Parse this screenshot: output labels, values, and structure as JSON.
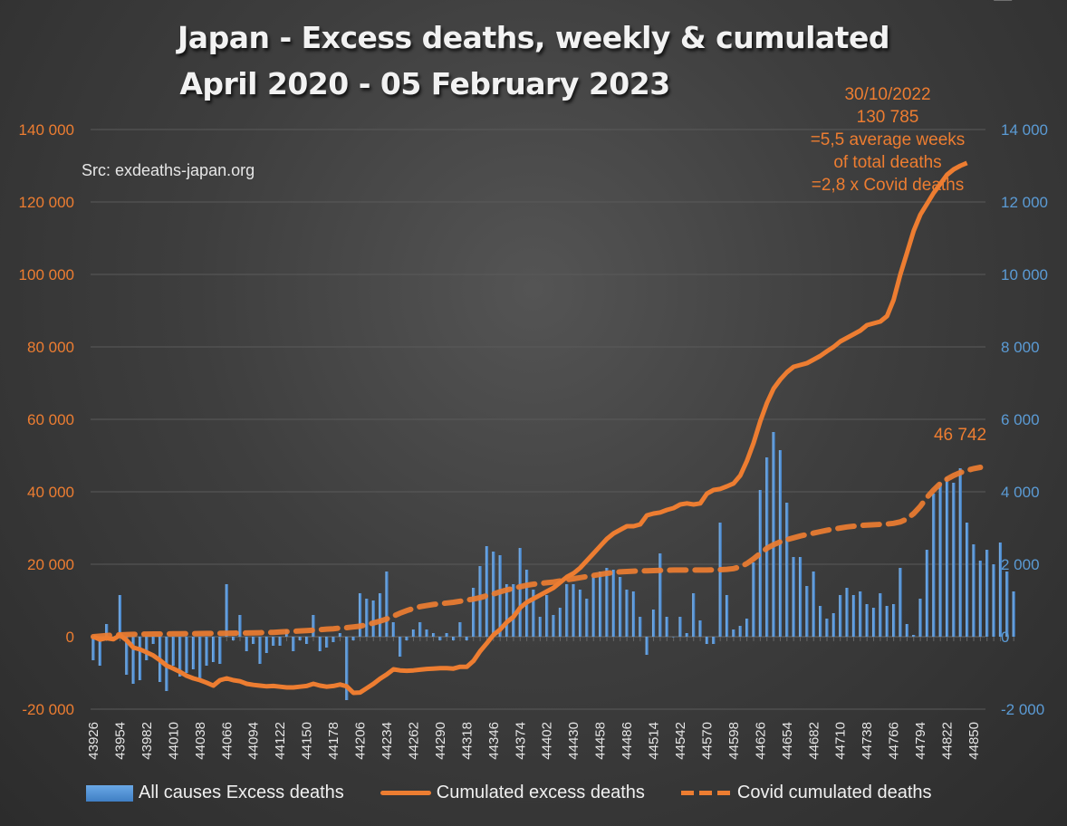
{
  "chart_data": {
    "type": "bar+line",
    "title": "Japan - Excess deaths, weekly & cumulated",
    "subtitle": "April 2020 - 05 February 2023",
    "source": "Src: exdeaths-japan.org",
    "left_axis": {
      "ylim": [
        -20000,
        140000
      ],
      "ticks": [
        "-20 000",
        "0",
        "20 000",
        "40 000",
        "60 000",
        "80 000",
        "100 000",
        "120 000",
        "140 000"
      ],
      "tick_values": [
        -20000,
        0,
        20000,
        40000,
        60000,
        80000,
        100000,
        120000,
        140000
      ],
      "color": "#ed7d31"
    },
    "right_axis": {
      "ylim": [
        -2000,
        14000
      ],
      "ticks": [
        "-2 000",
        "0",
        "2 000",
        "4 000",
        "6 000",
        "8 000",
        "10 000",
        "12 000",
        "14 000"
      ],
      "tick_values": [
        -2000,
        0,
        2000,
        4000,
        6000,
        8000,
        10000,
        12000,
        14000
      ],
      "color": "#5b9bd5"
    },
    "x_start": 43926,
    "x_step": 7,
    "x_tick_labels": [
      "43926",
      "43954",
      "43982",
      "44010",
      "44038",
      "44066",
      "44094",
      "44122",
      "44150",
      "44178",
      "44206",
      "44234",
      "44262",
      "44290",
      "44318",
      "44346",
      "44374",
      "44402",
      "44430",
      "44458",
      "44486",
      "44514",
      "44542",
      "44570",
      "44598",
      "44626",
      "44654",
      "44682",
      "44710",
      "44738",
      "44766",
      "44794",
      "44822",
      "44850"
    ],
    "grid": true,
    "legend_position": "bottom",
    "series": [
      {
        "name": "All causes Excess deaths",
        "type": "bar",
        "axis": "right",
        "color": "#5b9bd5",
        "values": [
          -650,
          -800,
          350,
          -100,
          1150,
          -1050,
          -1300,
          -1200,
          -650,
          -200,
          -1250,
          -1500,
          -800,
          -1100,
          -1000,
          -900,
          -1200,
          -800,
          -700,
          -750,
          1450,
          -100,
          600,
          -400,
          -200,
          -750,
          -450,
          -250,
          -250,
          200,
          -400,
          -100,
          -200,
          600,
          -400,
          -300,
          -150,
          100,
          -1750,
          -100,
          1200,
          1050,
          1000,
          1200,
          1800,
          400,
          -550,
          -100,
          200,
          400,
          200,
          100,
          -100,
          100,
          -100,
          400,
          -100,
          1350,
          1950,
          2500,
          2350,
          2250,
          1450,
          1450,
          2450,
          1850,
          1300,
          550,
          1150,
          600,
          800,
          1450,
          1450,
          1300,
          1050,
          1650,
          1800,
          1900,
          1850,
          1650,
          1300,
          1250,
          550,
          -500,
          750,
          2300,
          550,
          0,
          550,
          100,
          1200,
          450,
          -200,
          -200,
          3150,
          1150,
          200,
          300,
          500,
          2050,
          4050,
          4950,
          5650,
          5150,
          3700,
          2200,
          2200,
          1400,
          1800,
          850,
          500,
          650,
          1150,
          1350,
          1150,
          1250,
          900,
          800,
          1200,
          850,
          900,
          1900,
          350,
          50,
          1050,
          2400,
          3950,
          4250,
          4400,
          4250,
          4650,
          3150,
          2550,
          2100,
          2400,
          2000,
          2600,
          1800,
          1250
        ]
      },
      {
        "name": "Cumulated excess deaths",
        "type": "line",
        "axis": "left",
        "color": "#ed7d31",
        "values": [
          0,
          -800,
          -400,
          -700,
          400,
          -1000,
          -3000,
          -3500,
          -4300,
          -5200,
          -6500,
          -8000,
          -8800,
          -9700,
          -10800,
          -11500,
          -12000,
          -12700,
          -13500,
          -12000,
          -11500,
          -12000,
          -12300,
          -13000,
          -13300,
          -13500,
          -13700,
          -13600,
          -13800,
          -14000,
          -14000,
          -13800,
          -13600,
          -13000,
          -13500,
          -13800,
          -13600,
          -13200,
          -13700,
          -15500,
          -15400,
          -14200,
          -13000,
          -11600,
          -10400,
          -9000,
          -9300,
          -9400,
          -9300,
          -9100,
          -8900,
          -8800,
          -8700,
          -8700,
          -8800,
          -8300,
          -8300,
          -6700,
          -4000,
          -1800,
          500,
          2000,
          4000,
          5500,
          8000,
          9500,
          10500,
          11500,
          12500,
          13500,
          15000,
          16500,
          17500,
          19000,
          21000,
          23000,
          25000,
          27000,
          28500,
          29500,
          30500,
          30500,
          31000,
          33500,
          34000,
          34300,
          35000,
          35500,
          36500,
          36800,
          36500,
          36800,
          39500,
          40500,
          40800,
          41500,
          42300,
          44500,
          48500,
          53500,
          59500,
          64500,
          68500,
          71000,
          73000,
          74500,
          75000,
          75500,
          76500,
          77500,
          78800,
          80000,
          81500,
          82500,
          83500,
          84500,
          86000,
          86500,
          87000,
          88500,
          93000,
          100000,
          106000,
          112000,
          116500,
          119500,
          122500,
          125000,
          127500,
          129000,
          130000,
          130785
        ]
      },
      {
        "name": "Covid cumulated deaths",
        "type": "line",
        "axis": "left",
        "dashed": true,
        "color": "#ed7d31",
        "values": [
          0,
          150,
          300,
          450,
          500,
          600,
          650,
          700,
          720,
          740,
          760,
          780,
          800,
          820,
          840,
          860,
          880,
          900,
          920,
          940,
          960,
          980,
          1000,
          1020,
          1050,
          1100,
          1150,
          1200,
          1300,
          1400,
          1500,
          1600,
          1700,
          1800,
          1950,
          2100,
          2200,
          2400,
          2500,
          2700,
          2900,
          3300,
          3800,
          4300,
          4900,
          5700,
          6500,
          7200,
          7800,
          8300,
          8600,
          8900,
          9100,
          9300,
          9500,
          9800,
          10100,
          10400,
          10800,
          11300,
          11800,
          12400,
          12900,
          13400,
          13800,
          14200,
          14500,
          14700,
          14900,
          15100,
          15400,
          15700,
          16000,
          16300,
          16600,
          16900,
          17200,
          17500,
          17700,
          17900,
          18000,
          18100,
          18150,
          18200,
          18250,
          18300,
          18350,
          18400,
          18400,
          18400,
          18400,
          18400,
          18400,
          18450,
          18500,
          18600,
          18800,
          19300,
          20200,
          21500,
          23000,
          24400,
          25400,
          26200,
          26800,
          27300,
          27800,
          28200,
          28600,
          29000,
          29400,
          29700,
          30000,
          30300,
          30500,
          30700,
          30800,
          30900,
          31000,
          31100,
          31300,
          31700,
          32500,
          34000,
          36000,
          38500,
          40500,
          42300,
          43500,
          44500,
          45300,
          45900,
          46400,
          46742
        ]
      }
    ],
    "annotations": {
      "peak_note": [
        "30/10/2022",
        "130 785",
        "=5,5 average weeks",
        "of total deaths",
        "=2,8 x Covid deaths"
      ],
      "covid_end_label": "46 742"
    }
  },
  "legend": {
    "bar_label": "All causes Excess deaths",
    "line_label": "Cumulated excess deaths",
    "dashed_label": "Covid cumulated deaths"
  }
}
